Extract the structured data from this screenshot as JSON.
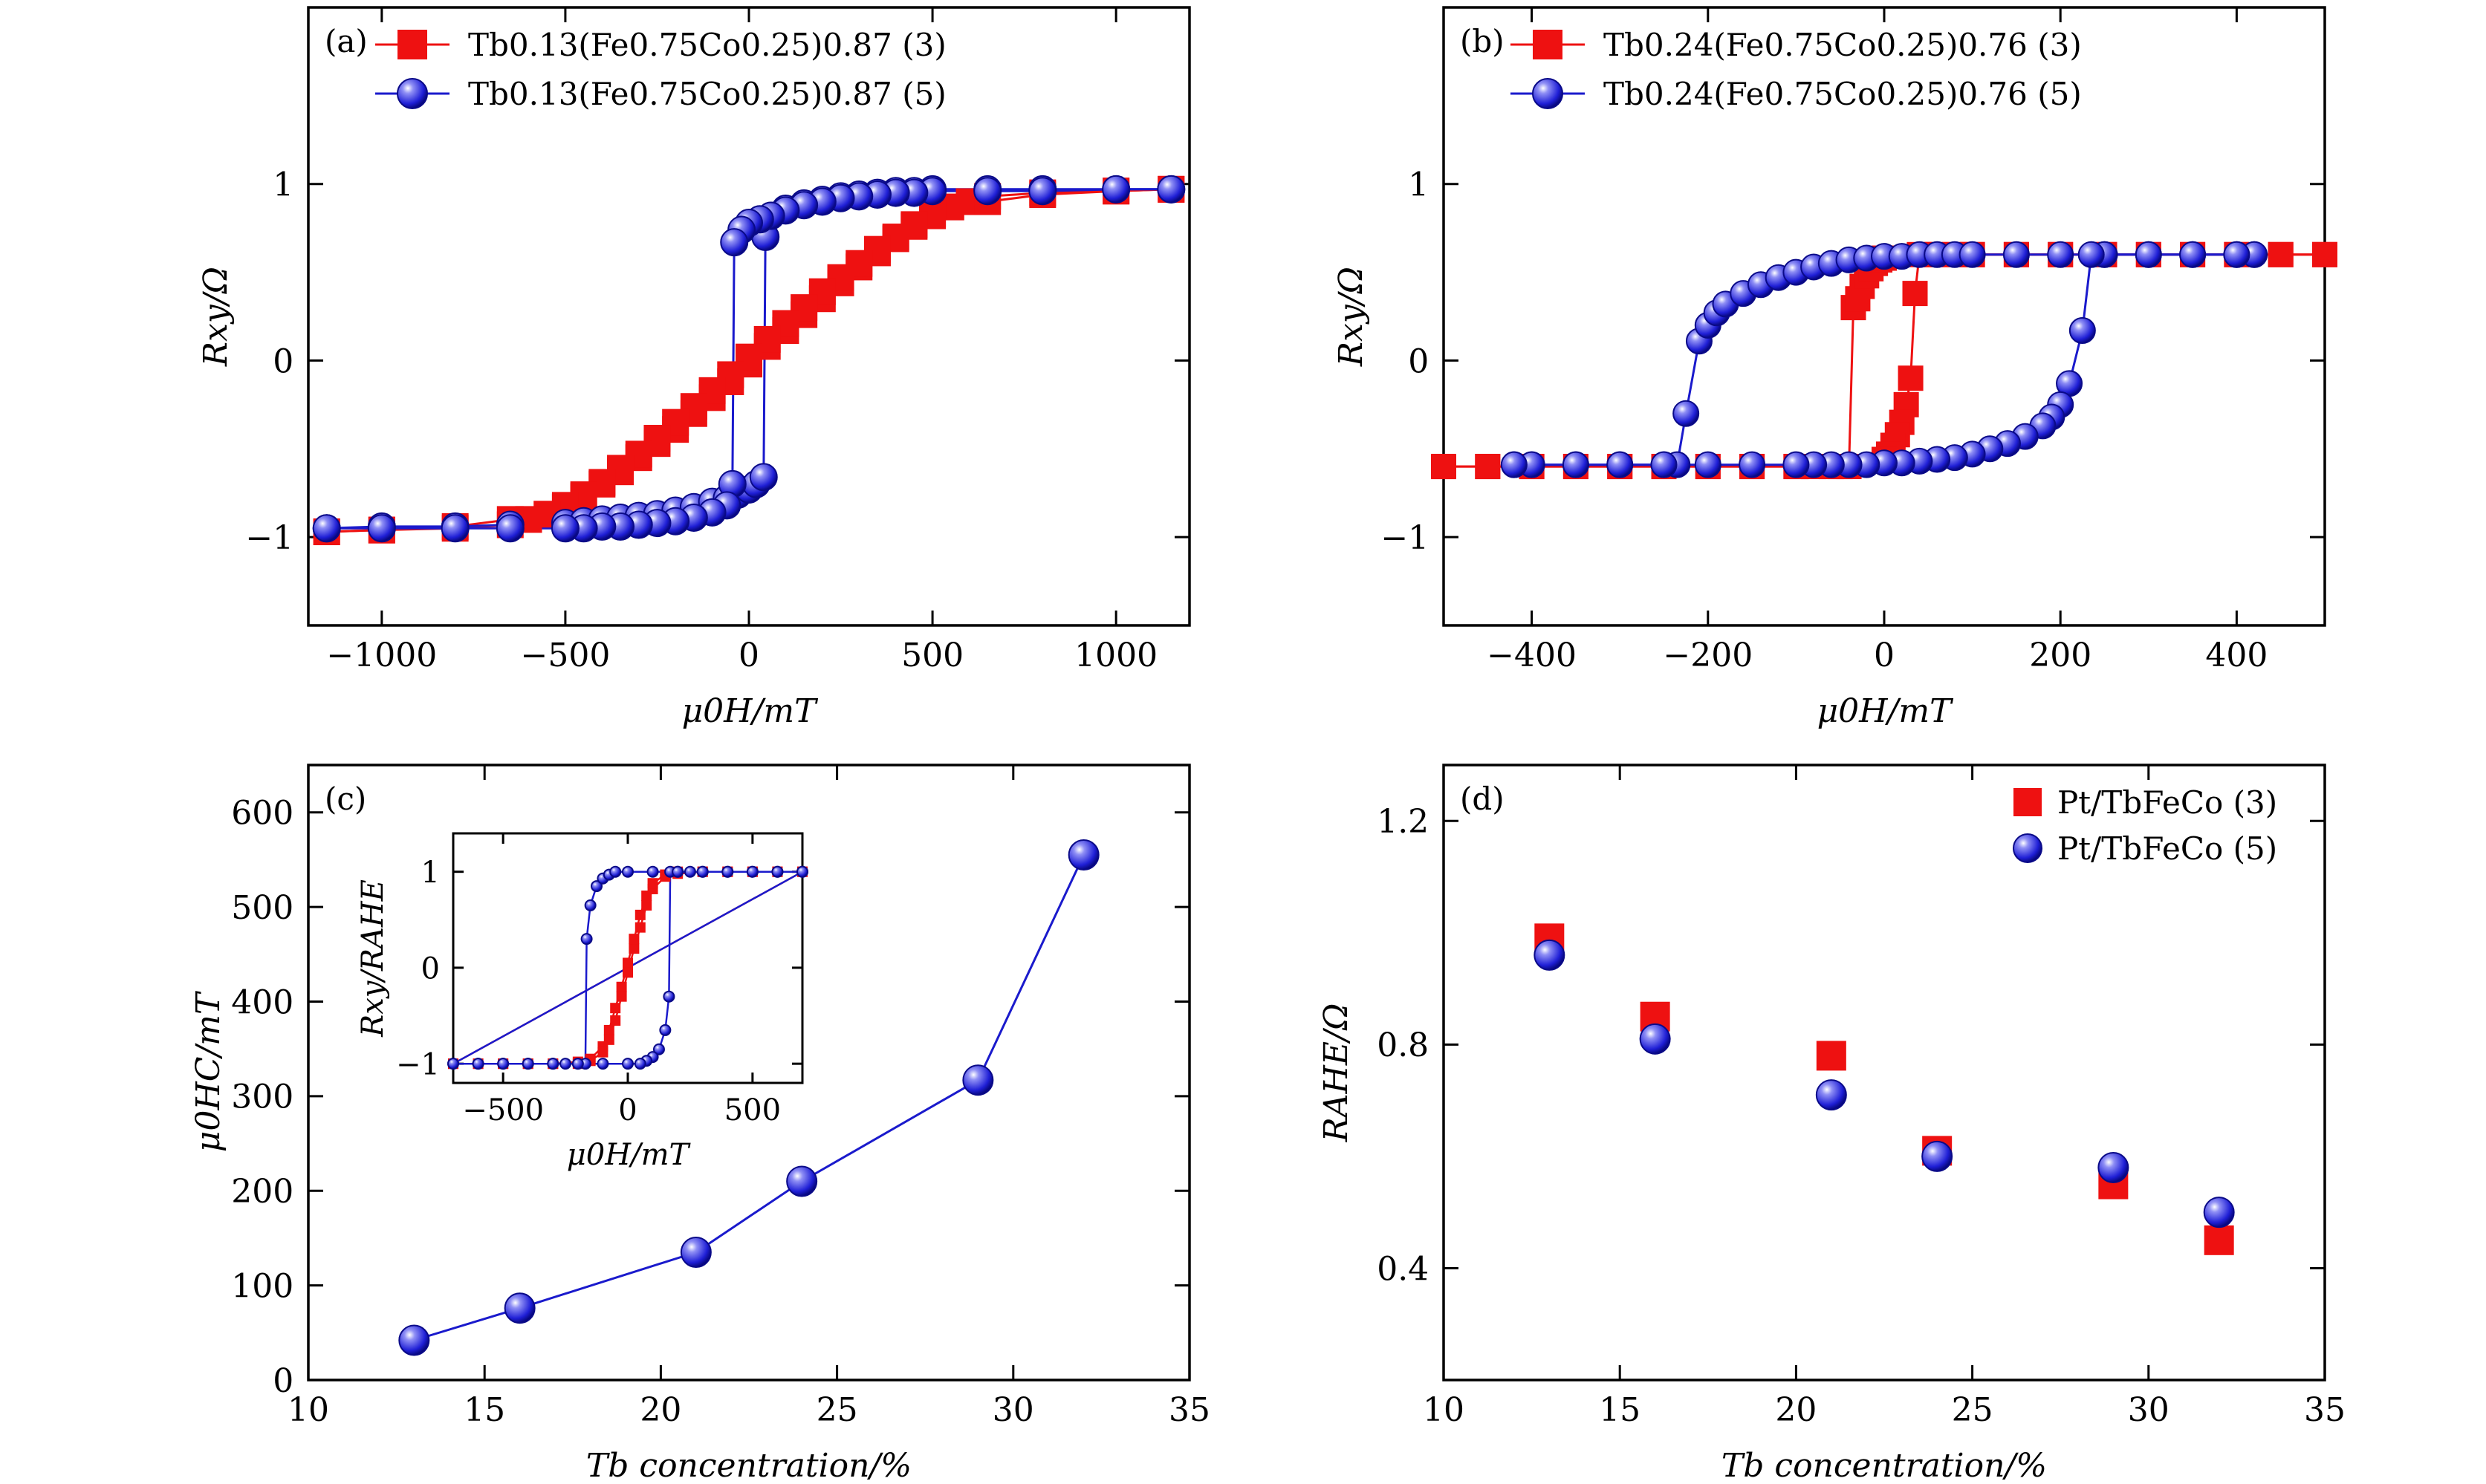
{
  "chart_data": [
    {
      "panel": "(a)",
      "type": "line",
      "xlabel": "μ0H/mT",
      "ylabel": "Rxy/Ω",
      "xlim": [
        -1200,
        1200
      ],
      "ylim": [
        -1.5,
        2.0
      ],
      "xticks": [
        -1000,
        -500,
        0,
        500,
        1000
      ],
      "xtick_labels": [
        "−1000",
        "−500",
        "0",
        "500",
        "1000"
      ],
      "yticks": [
        -1,
        0,
        1
      ],
      "ytick_labels": [
        "−1",
        "0",
        "1"
      ],
      "legend_position": "top-left",
      "series": [
        {
          "name": "Tb0.13(Fe0.75Co0.25)0.87 (3)",
          "color": "#ee1111",
          "marker": "square",
          "sweep_down": {
            "x": [
              -1150,
              -1000,
              -800,
              -650,
              -500,
              -450,
              -400,
              -350,
              -300,
              -250,
              -200,
              -150,
              -100,
              -50,
              0,
              50,
              100,
              150,
              200,
              250,
              300,
              350,
              400,
              450,
              500,
              550,
              600,
              650,
              800,
              1000,
              1150
            ],
            "y": [
              -0.97,
              -0.96,
              -0.94,
              -0.9,
              -0.83,
              -0.77,
              -0.7,
              -0.63,
              -0.55,
              -0.47,
              -0.39,
              -0.3,
              -0.21,
              -0.12,
              -0.02,
              0.08,
              0.17,
              0.26,
              0.35,
              0.44,
              0.53,
              0.61,
              0.69,
              0.76,
              0.82,
              0.87,
              0.9,
              0.93,
              0.95,
              0.96,
              0.97
            ]
          },
          "sweep_up": {
            "x": [
              1150,
              1000,
              800,
              650,
              500,
              450,
              400,
              350,
              300,
              250,
              200,
              150,
              100,
              50,
              0,
              -50,
              -100,
              -150,
              -200,
              -250,
              -300,
              -350,
              -400,
              -450,
              -500,
              -550,
              -600,
              -650,
              -800,
              -1000,
              -1150
            ],
            "y": [
              0.97,
              0.96,
              0.94,
              0.9,
              0.83,
              0.77,
              0.7,
              0.63,
              0.55,
              0.47,
              0.39,
              0.3,
              0.21,
              0.12,
              0.02,
              -0.08,
              -0.17,
              -0.26,
              -0.35,
              -0.44,
              -0.53,
              -0.61,
              -0.69,
              -0.76,
              -0.82,
              -0.87,
              -0.9,
              -0.93,
              -0.95,
              -0.96,
              -0.97
            ]
          }
        },
        {
          "name": "Tb0.13(Fe0.75Co0.25)0.87 (5)",
          "color": "#1a1acc",
          "marker": "sphere",
          "sweep_down": {
            "x": [
              -1150,
              -1000,
              -800,
              -650,
              -500,
              -450,
              -400,
              -350,
              -300,
              -250,
              -200,
              -150,
              -100,
              -60,
              -30,
              0,
              20,
              40,
              45,
              60,
              100,
              150,
              200,
              250,
              300,
              350,
              400,
              450,
              500,
              650,
              800,
              1000,
              1150
            ],
            "y": [
              -0.95,
              -0.94,
              -0.94,
              -0.93,
              -0.92,
              -0.91,
              -0.9,
              -0.89,
              -0.88,
              -0.87,
              -0.85,
              -0.83,
              -0.8,
              -0.78,
              -0.76,
              -0.73,
              -0.7,
              -0.66,
              0.7,
              0.82,
              0.86,
              0.89,
              0.91,
              0.93,
              0.94,
              0.95,
              0.96,
              0.96,
              0.97,
              0.97,
              0.97,
              0.97,
              0.97
            ]
          },
          "sweep_up": {
            "x": [
              1150,
              1000,
              800,
              650,
              500,
              450,
              400,
              350,
              300,
              250,
              200,
              150,
              100,
              60,
              30,
              0,
              -20,
              -40,
              -45,
              -60,
              -100,
              -150,
              -200,
              -250,
              -300,
              -350,
              -400,
              -450,
              -500,
              -650,
              -800,
              -1000,
              -1150
            ],
            "y": [
              0.97,
              0.97,
              0.96,
              0.96,
              0.96,
              0.95,
              0.95,
              0.94,
              0.93,
              0.92,
              0.9,
              0.88,
              0.85,
              0.82,
              0.8,
              0.78,
              0.74,
              0.67,
              -0.7,
              -0.82,
              -0.86,
              -0.89,
              -0.91,
              -0.92,
              -0.93,
              -0.94,
              -0.94,
              -0.95,
              -0.95,
              -0.95,
              -0.95,
              -0.95,
              -0.95
            ]
          }
        }
      ]
    },
    {
      "panel": "(b)",
      "type": "line",
      "xlabel": "μ0H/mT",
      "ylabel": "Rxy/Ω",
      "xlim": [
        -500,
        500
      ],
      "ylim": [
        -1.5,
        2.0
      ],
      "xticks": [
        -400,
        -200,
        0,
        200,
        400
      ],
      "xtick_labels": [
        "−400",
        "−200",
        "0",
        "200",
        "400"
      ],
      "yticks": [
        -1,
        0,
        1
      ],
      "ytick_labels": [
        "−1",
        "0",
        "1"
      ],
      "legend_position": "top-left",
      "series": [
        {
          "name": "Tb0.24(Fe0.75Co0.25)0.76 (3)",
          "color": "#ee1111",
          "marker": "square",
          "sweep_down": {
            "x": [
              -500,
              -450,
              -400,
              -350,
              -300,
              -250,
              -200,
              -150,
              -100,
              -80,
              -60,
              -40,
              -35,
              -30,
              -25,
              -20,
              -15,
              -10,
              -5,
              0,
              50,
              100,
              150,
              200,
              250,
              300,
              350,
              400,
              450,
              500
            ],
            "y": [
              -0.6,
              -0.6,
              -0.6,
              -0.6,
              -0.6,
              -0.6,
              -0.6,
              -0.6,
              -0.6,
              -0.6,
              -0.6,
              -0.6,
              0.3,
              0.35,
              0.42,
              0.48,
              0.52,
              0.55,
              0.57,
              0.58,
              0.6,
              0.6,
              0.6,
              0.6,
              0.6,
              0.6,
              0.6,
              0.6,
              0.6,
              0.6
            ]
          },
          "sweep_up": {
            "x": [
              500,
              450,
              400,
              350,
              300,
              250,
              200,
              150,
              100,
              80,
              60,
              40,
              35,
              30,
              25,
              20,
              15,
              10,
              5,
              0,
              -50,
              -100,
              -150,
              -200,
              -250,
              -300,
              -350,
              -400,
              -450,
              -500
            ],
            "y": [
              0.6,
              0.6,
              0.6,
              0.6,
              0.6,
              0.6,
              0.6,
              0.6,
              0.6,
              0.6,
              0.6,
              0.6,
              0.38,
              -0.1,
              -0.25,
              -0.35,
              -0.42,
              -0.48,
              -0.53,
              -0.56,
              -0.6,
              -0.6,
              -0.6,
              -0.6,
              -0.6,
              -0.6,
              -0.6,
              -0.6,
              -0.6,
              -0.6
            ]
          }
        },
        {
          "name": "Tb0.24(Fe0.75Co0.25)0.76 (5)",
          "color": "#1a1acc",
          "marker": "sphere",
          "sweep_down": {
            "x": [
              -420,
              -400,
              -350,
              -300,
              -250,
              -235,
              -225,
              -210,
              -200,
              -190,
              -180,
              -160,
              -140,
              -120,
              -100,
              -80,
              -60,
              -40,
              -20,
              0,
              20,
              40,
              60,
              80,
              100,
              150,
              200,
              250,
              300,
              350,
              400,
              420
            ],
            "y": [
              -0.59,
              -0.59,
              -0.59,
              -0.59,
              -0.59,
              -0.59,
              -0.3,
              0.11,
              0.2,
              0.27,
              0.32,
              0.38,
              0.43,
              0.47,
              0.5,
              0.53,
              0.55,
              0.57,
              0.58,
              0.59,
              0.59,
              0.6,
              0.6,
              0.6,
              0.6,
              0.6,
              0.6,
              0.6,
              0.6,
              0.6,
              0.6,
              0.6
            ]
          },
          "sweep_up": {
            "x": [
              420,
              400,
              350,
              300,
              250,
              235,
              225,
              210,
              200,
              190,
              180,
              160,
              140,
              120,
              100,
              80,
              60,
              40,
              20,
              0,
              -20,
              -40,
              -60,
              -80,
              -100,
              -150,
              -200,
              -250,
              -300,
              -350,
              -400,
              -420
            ],
            "y": [
              0.6,
              0.6,
              0.6,
              0.6,
              0.6,
              0.6,
              0.17,
              -0.13,
              -0.25,
              -0.32,
              -0.37,
              -0.43,
              -0.47,
              -0.5,
              -0.53,
              -0.55,
              -0.56,
              -0.57,
              -0.58,
              -0.58,
              -0.59,
              -0.59,
              -0.59,
              -0.59,
              -0.59,
              -0.59,
              -0.59,
              -0.59,
              -0.59,
              -0.59,
              -0.59,
              -0.59
            ]
          }
        }
      ]
    },
    {
      "panel": "(c)",
      "type": "line",
      "xlabel": "Tb concentration/%",
      "ylabel": "μ0HC/mT",
      "xlim": [
        10,
        35
      ],
      "ylim": [
        0,
        650
      ],
      "xticks": [
        10,
        15,
        20,
        25,
        30,
        35
      ],
      "yticks": [
        0,
        100,
        200,
        300,
        400,
        500,
        600
      ],
      "series": [
        {
          "name": "",
          "color": "#1a1acc",
          "marker": "sphere",
          "x": [
            13,
            16,
            21,
            24,
            29,
            32
          ],
          "y": [
            42,
            76,
            135,
            210,
            317,
            555
          ]
        }
      ],
      "inset": {
        "type": "line",
        "xlabel": "μ0H/mT",
        "ylabel": "Rxy/RAHE",
        "xlim": [
          -700,
          700
        ],
        "ylim": [
          -1.2,
          1.4
        ],
        "xticks": [
          -500,
          0,
          500
        ],
        "xtick_labels": [
          "−500",
          "0",
          "500"
        ],
        "yticks": [
          -1,
          0,
          1
        ],
        "ytick_labels": [
          "−1",
          "0",
          "1"
        ],
        "series": [
          {
            "name": "",
            "color": "#ee1111",
            "marker": "square",
            "x": [
              -700,
              -600,
              -500,
              -400,
              -300,
              -200,
              -150,
              -100,
              -75,
              -50,
              -25,
              0,
              25,
              50,
              75,
              100,
              150,
              200,
              300,
              400,
              500,
              600,
              700
            ],
            "y": [
              -1,
              -1,
              -1,
              -1,
              -1,
              -0.98,
              -0.95,
              -0.82,
              -0.65,
              -0.42,
              -0.2,
              0.05,
              0.3,
              0.55,
              0.75,
              0.88,
              0.97,
              1,
              1,
              1,
              1,
              1,
              1
            ]
          },
          {
            "name": "",
            "color": "#1a1acc",
            "marker": "sphere",
            "x": [
              -700,
              -600,
              -500,
              -400,
              -300,
              -250,
              -200,
              -170,
              -165,
              -150,
              -125,
              -100,
              -75,
              -50,
              0,
              100,
              200,
              300,
              400,
              500,
              600,
              700
            ],
            "y": [
              -1,
              -1,
              -1,
              -1,
              -1,
              -1,
              -1,
              -1,
              0.3,
              0.65,
              0.85,
              0.93,
              0.97,
              1,
              1,
              1,
              1,
              1,
              1,
              1,
              1,
              1
            ]
          }
        ]
      }
    },
    {
      "panel": "(d)",
      "type": "scatter",
      "xlabel": "Tb concentration/%",
      "ylabel": "RAHE/Ω",
      "xlim": [
        10,
        35
      ],
      "ylim": [
        0.2,
        1.3
      ],
      "xticks": [
        10,
        15,
        20,
        25,
        30,
        35
      ],
      "yticks": [
        0.4,
        0.8,
        1.2
      ],
      "ytick_labels": [
        "0.4",
        "0.8",
        "1.2"
      ],
      "legend_position": "top-right",
      "series": [
        {
          "name": "Pt/TbFeCo (3)",
          "color": "#ee1111",
          "marker": "square",
          "x": [
            13,
            16,
            21,
            24,
            29,
            32
          ],
          "y": [
            0.99,
            0.85,
            0.78,
            0.61,
            0.55,
            0.45
          ]
        },
        {
          "name": "Pt/TbFeCo (5)",
          "color": "#1a1acc",
          "marker": "sphere",
          "x": [
            13,
            16,
            21,
            24,
            29,
            32
          ],
          "y": [
            0.96,
            0.81,
            0.71,
            0.6,
            0.58,
            0.5
          ]
        }
      ]
    }
  ]
}
